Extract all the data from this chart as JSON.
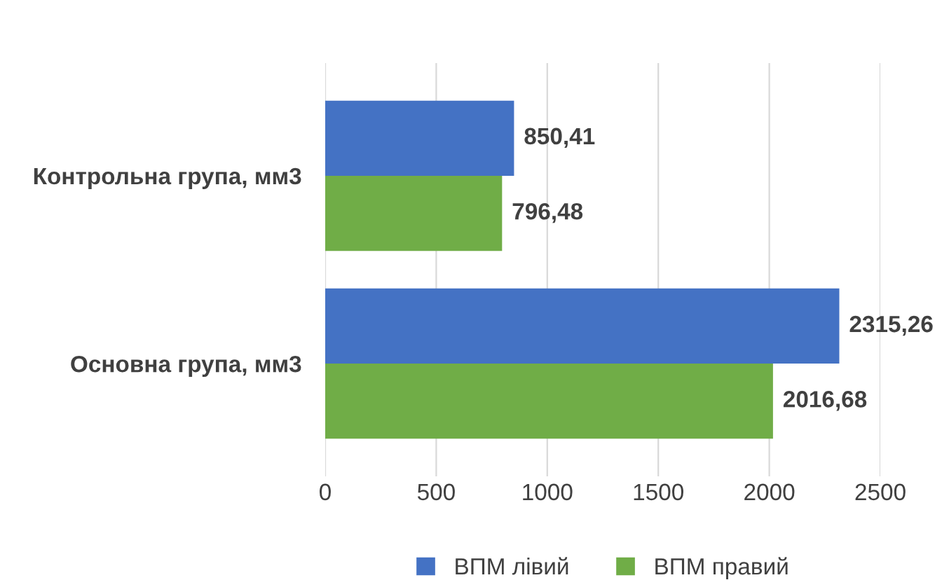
{
  "chart_data": {
    "type": "bar",
    "orientation": "horizontal",
    "categories": [
      "Контрольна група, мм3",
      "Основна група, мм3"
    ],
    "series": [
      {
        "name": "ВПМ лівий",
        "color": "#4472c4",
        "values": [
          850.41,
          2315.26
        ],
        "value_labels": [
          "850,41",
          "2315,26"
        ]
      },
      {
        "name": "ВПМ правий",
        "color": "#70ad47",
        "values": [
          796.48,
          2016.68
        ],
        "value_labels": [
          "796,48",
          "2016,68"
        ]
      }
    ],
    "xlim": [
      0,
      2500
    ],
    "xticks": [
      0,
      500,
      1000,
      1500,
      2000,
      2500
    ],
    "grid": "x",
    "legend": "bottom"
  }
}
